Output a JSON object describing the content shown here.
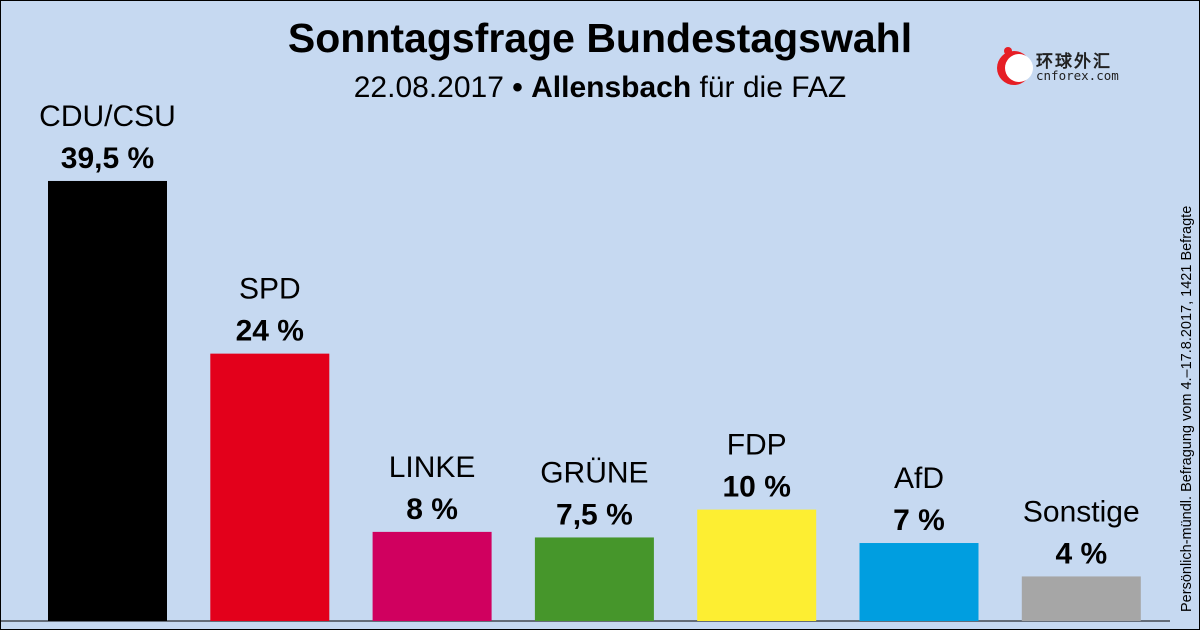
{
  "chart_data": {
    "type": "bar",
    "title": "Sonntagsfrage Bundestagswahl",
    "subtitle": {
      "date": "22.08.2017",
      "bullet": "•",
      "institute": "Allensbach",
      "client": "für die FAZ"
    },
    "note": "Persönlich-mündl. Befragung vom 4.–17.8.2017, 1421 Befragte",
    "categories": [
      "CDU/CSU",
      "SPD",
      "LINKE",
      "GRÜNE",
      "FDP",
      "AfD",
      "Sonstige"
    ],
    "values": [
      39.5,
      24,
      8,
      7.5,
      10,
      7,
      4
    ],
    "value_labels": [
      "39,5 %",
      "24 %",
      "8 %",
      "7,5 %",
      "10 %",
      "7 %",
      "4 %"
    ],
    "colors": [
      "#000000",
      "#e3001b",
      "#d0005f",
      "#46962b",
      "#fdee32",
      "#009ee0",
      "#a6a6a6"
    ],
    "ylim": [
      0,
      40
    ],
    "grid": false,
    "legend": "none"
  },
  "logo": {
    "name_cn": "环球外汇",
    "name_en": "cnforex.com"
  }
}
